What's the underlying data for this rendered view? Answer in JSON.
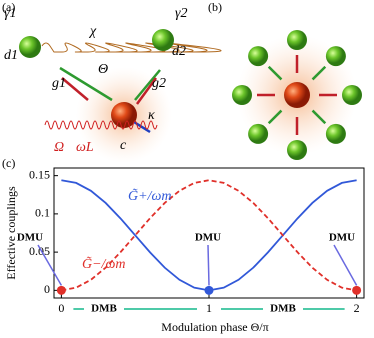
{
  "panels": {
    "a": "(a)",
    "b": "(b)",
    "c": "(c)"
  },
  "diagram": {
    "gamma1": "γ1",
    "gamma2": "γ2",
    "chi": "χ",
    "d1": "d1",
    "d2": "d2",
    "theta": "Θ",
    "g1": "g1",
    "g2": "g2",
    "kappa": "κ",
    "omega": "Ω",
    "omegaL": "ωL",
    "c": "c"
  },
  "chart_data": {
    "type": "line",
    "x": [
      0,
      0.1,
      0.2,
      0.3,
      0.4,
      0.5,
      0.6,
      0.7,
      0.8,
      0.9,
      1,
      1.1,
      1.2,
      1.3,
      1.4,
      1.5,
      1.6,
      1.7,
      1.8,
      1.9,
      2
    ],
    "series": [
      {
        "name": "G̃+/ωm",
        "color": "#3158d8",
        "dash": false,
        "values": [
          0.144,
          0.1405,
          0.1302,
          0.1143,
          0.0942,
          0.072,
          0.0498,
          0.0297,
          0.0138,
          0.0035,
          0,
          0.0035,
          0.0138,
          0.0297,
          0.0498,
          0.072,
          0.0942,
          0.1143,
          0.1302,
          0.1405,
          0.144
        ]
      },
      {
        "name": "G̃−/ωm",
        "color": "#e0302a",
        "dash": true,
        "values": [
          0,
          0.0035,
          0.0138,
          0.0297,
          0.0498,
          0.072,
          0.0942,
          0.1143,
          0.1302,
          0.1405,
          0.144,
          0.1405,
          0.1302,
          0.1143,
          0.0942,
          0.072,
          0.0498,
          0.0297,
          0.0138,
          0.0035,
          0
        ]
      }
    ],
    "xlim": [
      -0.05,
      2.05
    ],
    "ylim": [
      -0.01,
      0.16
    ],
    "xticks": [
      0,
      1,
      2
    ],
    "yticks": [
      0,
      0.05,
      0.1,
      0.15
    ],
    "xlabel": "Modulation phase Θ/π",
    "ylabel": "Effective couplings",
    "annotations": [
      "DMU",
      "DMU",
      "DMU",
      "DMB",
      "DMB"
    ]
  }
}
